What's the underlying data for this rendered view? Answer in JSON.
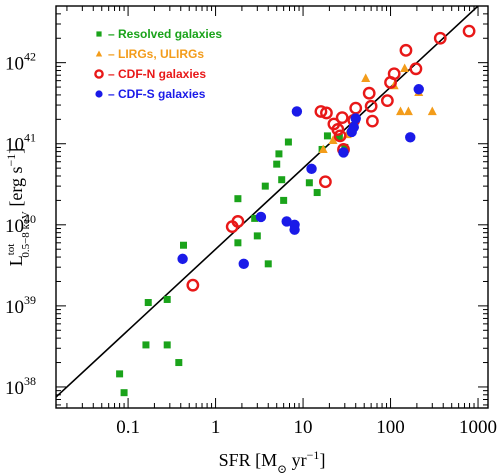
{
  "chart_data": {
    "type": "scatter",
    "xlabel": "SFR [M",
    "xlabel_sun": "⊙",
    "xlabel_units": " yr",
    "xlabel_exp": "−1",
    "xlabel_close": "]",
    "ylabel_L": "L",
    "ylabel_sup": "tot",
    "ylabel_sub": "0.5−8 keV",
    "ylabel_units": " [erg s",
    "ylabel_exp": "−1",
    "ylabel_close": "]",
    "x_scale": "log",
    "y_scale": "log",
    "xlim": [
      0.015,
      1300
    ],
    "ylim": [
      5.5e+37,
      5e+42
    ],
    "x_ticks": [
      {
        "value": 0.1,
        "label": "0.1"
      },
      {
        "value": 1,
        "label": "1"
      },
      {
        "value": 10,
        "label": "10"
      },
      {
        "value": 100,
        "label": "100"
      },
      {
        "value": 1000,
        "label": "1000"
      }
    ],
    "y_ticks": [
      {
        "value": 1e+38,
        "base": "10",
        "exp": "38"
      },
      {
        "value": 1e+39,
        "base": "10",
        "exp": "39"
      },
      {
        "value": 1e+40,
        "base": "10",
        "exp": "40"
      },
      {
        "value": 1e+41,
        "base": "10",
        "exp": "41"
      },
      {
        "value": 1e+42,
        "base": "10",
        "exp": "42"
      }
    ],
    "legend_position": "top-left",
    "fit_line": {
      "slope": 1,
      "norm": 5e+39
    },
    "series": [
      {
        "name": "Resolved galaxies",
        "marker": "square",
        "color": "#1aa31a",
        "points": [
          [
            0.08,
            1.45e+38
          ],
          [
            0.09,
            8.5e+37
          ],
          [
            0.17,
            1.1e+39
          ],
          [
            0.16,
            3.3e+38
          ],
          [
            0.28,
            1.2e+39
          ],
          [
            0.28,
            3.3e+38
          ],
          [
            0.38,
            2e+38
          ],
          [
            0.43,
            5.6e+39
          ],
          [
            1.8,
            2.1e+40
          ],
          [
            1.8,
            6e+39
          ],
          [
            2.8,
            1.2e+40
          ],
          [
            3.0,
            7.3e+39
          ],
          [
            3.7,
            3e+40
          ],
          [
            4.0,
            3.3e+39
          ],
          [
            5.0,
            5.6e+40
          ],
          [
            5.3,
            7.5e+40
          ],
          [
            5.7,
            3.6e+40
          ],
          [
            6.0,
            2e+40
          ],
          [
            6.8,
            1.05e+41
          ],
          [
            11.8,
            3.3e+40
          ],
          [
            14.5,
            2.5e+40
          ],
          [
            16.5,
            8.5e+40
          ],
          [
            19.0,
            1.25e+41
          ],
          [
            26.0,
            1.2e+41
          ],
          [
            30.0,
            9e+40
          ]
        ]
      },
      {
        "name": "LIRGs, ULIRGs",
        "marker": "triangle",
        "color": "#f39c1a",
        "points": [
          [
            17.0,
            8.5e+40
          ],
          [
            22.0,
            1.1e+41
          ],
          [
            32.0,
            1.3e+41
          ],
          [
            52.0,
            6.4e+41
          ],
          [
            110.0,
            5.2e+41
          ],
          [
            130.0,
            2.5e+41
          ],
          [
            145.0,
            8.5e+41
          ],
          [
            160.0,
            2.5e+41
          ],
          [
            210.0,
            4.3e+41
          ],
          [
            300.0,
            2.5e+41
          ]
        ]
      },
      {
        "name": "CDF-N galaxies",
        "marker": "open-circle",
        "color": "#e81818",
        "points": [
          [
            0.55,
            1.8e+39
          ],
          [
            1.55,
            9.5e+39
          ],
          [
            1.8,
            1.1e+40
          ],
          [
            16.0,
            2.5e+41
          ],
          [
            18.0,
            3.4e+40
          ],
          [
            18.5,
            2.4e+41
          ],
          [
            22.5,
            1.75e+41
          ],
          [
            25.0,
            1.5e+41
          ],
          [
            26.5,
            1.25e+41
          ],
          [
            28.0,
            2.1e+41
          ],
          [
            29.0,
            8.5e+40
          ],
          [
            38.0,
            1.95e+41
          ],
          [
            40.0,
            2.75e+41
          ],
          [
            57.0,
            4.2e+41
          ],
          [
            60.0,
            2.9e+41
          ],
          [
            62.0,
            1.9e+41
          ],
          [
            92.0,
            3.4e+41
          ],
          [
            100.0,
            5.7e+41
          ],
          [
            110.0,
            7.3e+41
          ],
          [
            150.0,
            1.42e+42
          ],
          [
            195.0,
            8.4e+41
          ],
          [
            370.0,
            2e+42
          ],
          [
            790.0,
            2.45e+42
          ]
        ]
      },
      {
        "name": "CDF-S galaxies",
        "marker": "filled-circle",
        "color": "#1a1ae8",
        "points": [
          [
            0.42,
            3.8e+39
          ],
          [
            2.1,
            3.3e+39
          ],
          [
            3.3,
            1.25e+40
          ],
          [
            6.5,
            1.1e+40
          ],
          [
            8.0,
            1e+40
          ],
          [
            8.0,
            8.7e+39
          ],
          [
            8.5,
            2.5e+41
          ],
          [
            12.5,
            4.9e+40
          ],
          [
            29.0,
            7.8e+40
          ],
          [
            36.0,
            1.4e+41
          ],
          [
            38.0,
            1.6e+41
          ],
          [
            40.0,
            2.05e+41
          ],
          [
            168.0,
            1.2e+41
          ],
          [
            210.0,
            4.7e+41
          ]
        ]
      }
    ]
  }
}
